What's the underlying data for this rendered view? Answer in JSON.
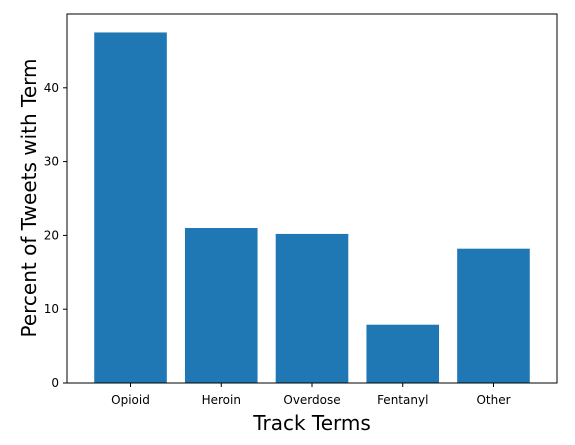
{
  "chart_data": {
    "type": "bar",
    "title": "",
    "xlabel": "Track Terms",
    "ylabel": "Percent of Tweets with Term",
    "categories": [
      "Opioid",
      "Heroin",
      "Overdose",
      "Fentanyl",
      "Other"
    ],
    "values": [
      47.5,
      21.0,
      20.2,
      7.9,
      18.2
    ],
    "ylim": [
      0,
      50
    ],
    "yticks": [
      0,
      10,
      20,
      30,
      40
    ],
    "bar_color": "#1f77b4",
    "grid": false,
    "legend": "none"
  }
}
